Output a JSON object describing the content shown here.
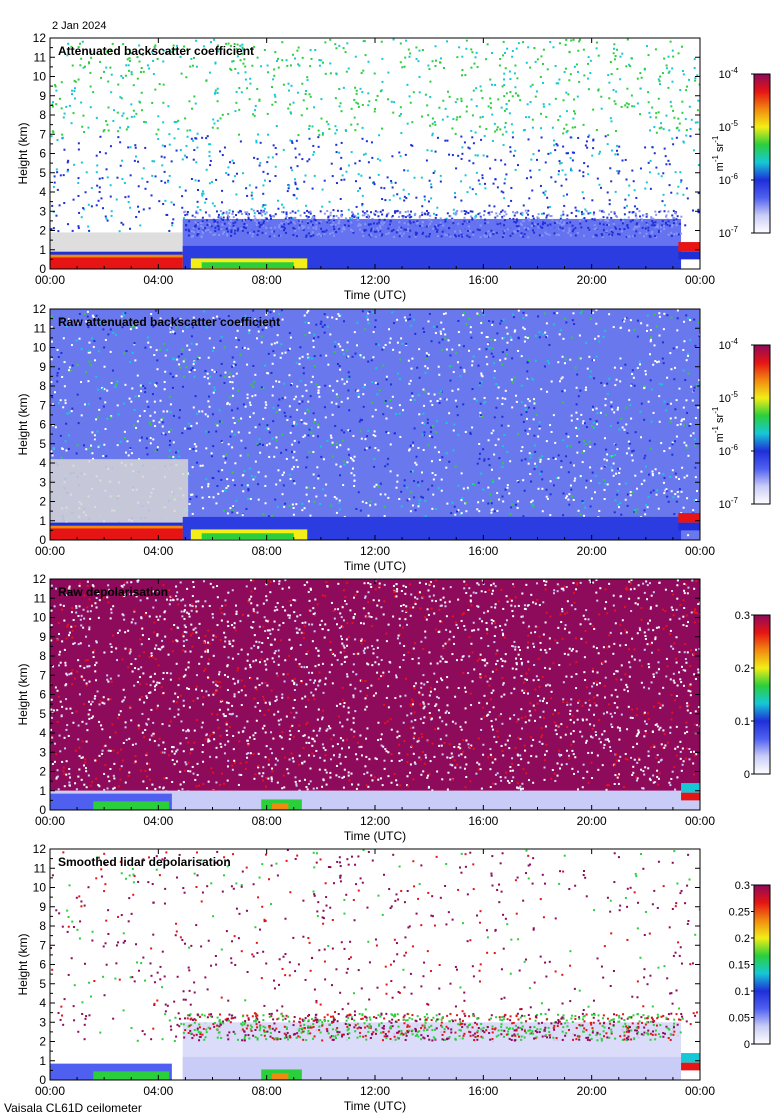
{
  "figure": {
    "date": "2 Jan 2024",
    "instrument": "Vaisala CL61D ceilometer",
    "colors": {
      "backscatter_scale": [
        "#ffffff",
        "#c9ccf6",
        "#4f60f0",
        "#1f2fd8",
        "#16c8d6",
        "#2bcf3c",
        "#f2ee16",
        "#f28a10",
        "#e61414",
        "#8e0a5a"
      ],
      "depol_scale": [
        "#ffffff",
        "#c9ccf6",
        "#4f60f0",
        "#1f2fd8",
        "#16c8d6",
        "#2bcf3c",
        "#f2ee16",
        "#f28a10",
        "#e61414",
        "#8e0a5a"
      ],
      "grey_noise": "#d6d6d6"
    }
  },
  "chart_data": [
    {
      "type": "heatmap",
      "title": "Attenuated backscatter coefficient",
      "xlabel": "Time (UTC)",
      "ylabel": "Height (km)",
      "x_ticks": [
        "00:00",
        "04:00",
        "08:00",
        "12:00",
        "16:00",
        "20:00",
        "00:00"
      ],
      "xlim_hours": [
        0,
        24
      ],
      "y_ticks": [
        "0",
        "1",
        "2",
        "3",
        "4",
        "5",
        "6",
        "7",
        "8",
        "9",
        "10",
        "11",
        "12"
      ],
      "ylim_km": [
        0,
        12
      ],
      "colorbar": {
        "type": "log",
        "ticks": [
          "10",
          "10",
          "10",
          "10"
        ],
        "exponents": [
          "-7",
          "-6",
          "-5",
          "-4"
        ],
        "range": [
          1e-07,
          0.0001
        ],
        "unit_parts": [
          "m",
          "-1",
          " sr",
          "-1"
        ]
      },
      "features": {
        "low_cloud_top_km": 0.85,
        "low_cloud_hours": [
          0,
          4.9
        ],
        "aerosol_top_km": 2.6,
        "mid_cloud_hours": [
          5.2,
          9.5
        ],
        "late_cloud_hours": [
          23.2,
          24
        ]
      }
    },
    {
      "type": "heatmap",
      "title": "Raw attenuated backscatter coefficient",
      "xlabel": "Time (UTC)",
      "ylabel": "Height (km)",
      "x_ticks": [
        "00:00",
        "04:00",
        "08:00",
        "12:00",
        "16:00",
        "20:00",
        "00:00"
      ],
      "xlim_hours": [
        0,
        24
      ],
      "y_ticks": [
        "0",
        "1",
        "2",
        "3",
        "4",
        "5",
        "6",
        "7",
        "8",
        "9",
        "10",
        "11",
        "12"
      ],
      "ylim_km": [
        0,
        12
      ],
      "colorbar": {
        "type": "log",
        "ticks": [
          "10",
          "10",
          "10",
          "10"
        ],
        "exponents": [
          "-7",
          "-6",
          "-5",
          "-4"
        ],
        "range": [
          1e-07,
          0.0001
        ],
        "unit_parts": [
          "m",
          "-1",
          " sr",
          "-1"
        ]
      },
      "features": {
        "low_cloud_top_km": 0.85,
        "low_cloud_hours": [
          0,
          4.9
        ],
        "noise_fill": "full",
        "mid_cloud_hours": [
          5.2,
          9.5
        ],
        "late_cloud_hours": [
          23.2,
          24
        ]
      }
    },
    {
      "type": "heatmap",
      "title": "Raw depolarisation",
      "xlabel": "Time (UTC)",
      "ylabel": "Height (km)",
      "x_ticks": [
        "00:00",
        "04:00",
        "08:00",
        "12:00",
        "16:00",
        "20:00",
        "00:00"
      ],
      "xlim_hours": [
        0,
        24
      ],
      "y_ticks": [
        "0",
        "1",
        "2",
        "3",
        "4",
        "5",
        "6",
        "7",
        "8",
        "9",
        "10",
        "11",
        "12"
      ],
      "ylim_km": [
        0,
        12
      ],
      "colorbar": {
        "type": "linear",
        "ticks": [
          "0",
          "0.1",
          "0.2",
          "0.3"
        ],
        "range": [
          0,
          0.3
        ]
      },
      "features": {
        "low_cloud_top_km": 0.85,
        "low_cloud_hours": [
          0,
          4.5
        ],
        "noise_fill": "depol",
        "mid_cloud_hours": [
          7.8,
          9.3
        ],
        "late_cloud_hours": [
          23.3,
          24
        ]
      }
    },
    {
      "type": "heatmap",
      "title": "Smoothed lidar depolarisation",
      "xlabel": "Time (UTC)",
      "ylabel": "Height (km)",
      "x_ticks": [
        "00:00",
        "04:00",
        "08:00",
        "12:00",
        "16:00",
        "20:00",
        "00:00"
      ],
      "xlim_hours": [
        0,
        24
      ],
      "y_ticks": [
        "0",
        "1",
        "2",
        "3",
        "4",
        "5",
        "6",
        "7",
        "8",
        "9",
        "10",
        "11",
        "12"
      ],
      "ylim_km": [
        0,
        12
      ],
      "colorbar": {
        "type": "linear",
        "ticks": [
          "0",
          "0.05",
          "0.1",
          "0.15",
          "0.2",
          "0.25",
          "0.3"
        ],
        "range": [
          0,
          0.3
        ]
      },
      "features": {
        "low_cloud_top_km": 0.85,
        "low_cloud_hours": [
          0,
          4.5
        ],
        "aerosol_top_km": 3.0,
        "mid_cloud_hours": [
          7.8,
          9.3
        ],
        "late_cloud_hours": [
          23.3,
          24
        ]
      }
    }
  ]
}
